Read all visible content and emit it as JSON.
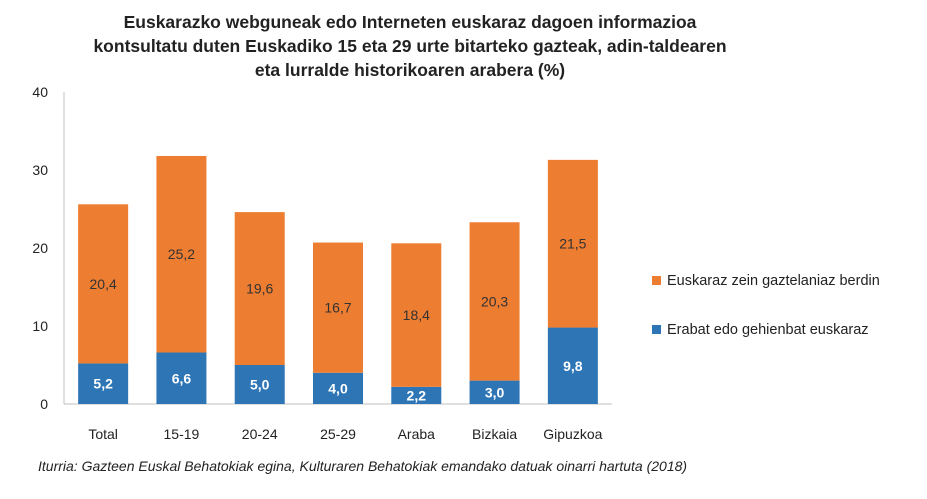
{
  "chart_data": {
    "type": "bar",
    "stacked": true,
    "title_lines": [
      "Euskarazko webguneak edo Interneten euskaraz dagoen informazioa",
      "kontsultatu duten Euskadiko 15 eta 29 urte bitarteko gazteak, adin-taldearen",
      "eta lurralde historikoaren arabera (%)"
    ],
    "categories": [
      "Total",
      "15-19",
      "20-24",
      "25-29",
      "Araba",
      "Bizkaia",
      "Gipuzkoa"
    ],
    "series": [
      {
        "name": "Erabat edo gehienbat euskaraz",
        "color": "#2e75b6",
        "values": [
          5.2,
          6.6,
          5.0,
          4.0,
          2.2,
          3.0,
          9.8
        ],
        "labels": [
          "5,2",
          "6,6",
          "5,0",
          "4,0",
          "2,2",
          "3,0",
          "9,8"
        ]
      },
      {
        "name": "Euskaraz zein gaztelaniaz  berdin",
        "color": "#ed7d31",
        "values": [
          20.4,
          25.2,
          19.6,
          16.7,
          18.4,
          20.3,
          21.5
        ],
        "labels": [
          "20,4",
          "25,2",
          "19,6",
          "16,7",
          "18,4",
          "20,3",
          "21,5"
        ]
      }
    ],
    "ylim": [
      0,
      40
    ],
    "yticks": [
      0,
      10,
      20,
      30,
      40
    ],
    "grid": false,
    "legend_placement": "right",
    "source": "Iturria: Gazteen  Euskal Behatokiak egina, Kulturaren Behatokiak emandako datuak oinarri hartuta (2018)"
  }
}
